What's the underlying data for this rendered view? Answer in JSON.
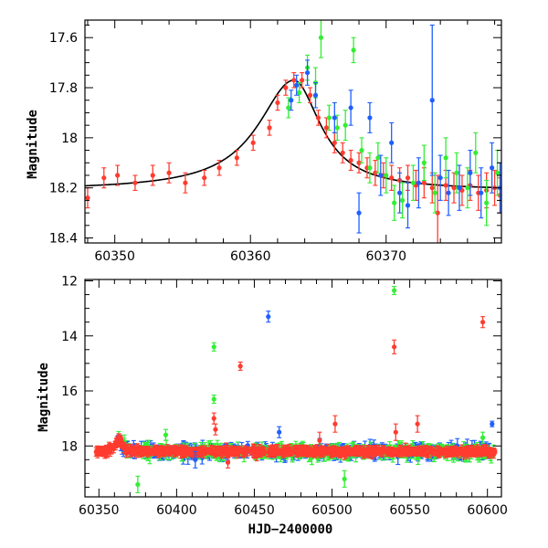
{
  "chart_data": [
    {
      "type": "scatter",
      "panel": "top",
      "title": "",
      "xlabel": "",
      "ylabel": "Magnitude",
      "xlim": [
        60347.8,
        60378.5
      ],
      "ylim": [
        18.42,
        17.53
      ],
      "y_inverted": true,
      "grid": false,
      "x_ticks": [
        60350,
        60360,
        60370
      ],
      "x_tick_labels": [
        "60350",
        "60360",
        "60370"
      ],
      "y_ticks": [
        17.6,
        17.8,
        18,
        18.2,
        18.4
      ],
      "y_tick_labels": [
        "17.6",
        "17.8",
        "18",
        "18.2",
        "18.4"
      ],
      "model_curve": {
        "color": "#000000",
        "baseline": 18.21,
        "peak_x": 60363.2,
        "peak_mag": 17.77,
        "rise_width": 3.2,
        "decay_width": 2.4
      },
      "series": [
        {
          "color": "#ff3b2f",
          "points": [
            [
              60348.0,
              18.24,
              0.04
            ],
            [
              60349.2,
              18.16,
              0.04
            ],
            [
              60350.2,
              18.15,
              0.04
            ],
            [
              60351.5,
              18.18,
              0.03
            ],
            [
              60352.8,
              18.15,
              0.04
            ],
            [
              60354.0,
              18.14,
              0.04
            ],
            [
              60355.2,
              18.18,
              0.04
            ],
            [
              60356.6,
              18.16,
              0.03
            ],
            [
              60357.7,
              18.12,
              0.03
            ],
            [
              60359.0,
              18.08,
              0.03
            ],
            [
              60360.2,
              18.02,
              0.03
            ],
            [
              60361.4,
              17.96,
              0.03
            ],
            [
              60362.0,
              17.86,
              0.03
            ],
            [
              60362.6,
              17.8,
              0.03
            ],
            [
              60363.2,
              17.77,
              0.03
            ],
            [
              60363.8,
              17.77,
              0.03
            ],
            [
              60364.4,
              17.83,
              0.03
            ],
            [
              60365.0,
              17.92,
              0.03
            ],
            [
              60365.6,
              17.96,
              0.04
            ],
            [
              60366.2,
              18.02,
              0.04
            ],
            [
              60366.8,
              18.06,
              0.04
            ],
            [
              60367.4,
              18.09,
              0.04
            ],
            [
              60368.0,
              18.1,
              0.04
            ],
            [
              60368.6,
              18.12,
              0.04
            ],
            [
              60369.2,
              18.14,
              0.05
            ],
            [
              60369.8,
              18.15,
              0.05
            ],
            [
              60370.4,
              18.16,
              0.05
            ],
            [
              60371.0,
              18.17,
              0.05
            ],
            [
              60371.6,
              18.16,
              0.05
            ],
            [
              60372.2,
              18.19,
              0.06
            ],
            [
              60372.8,
              18.18,
              0.06
            ],
            [
              60373.4,
              18.2,
              0.06
            ],
            [
              60373.8,
              18.3,
              0.15
            ],
            [
              60374.4,
              18.19,
              0.06
            ],
            [
              60375.0,
              18.2,
              0.06
            ],
            [
              60375.6,
              18.21,
              0.06
            ],
            [
              60376.2,
              18.19,
              0.06
            ],
            [
              60376.8,
              18.22,
              0.07
            ],
            [
              60377.4,
              18.21,
              0.07
            ],
            [
              60378.0,
              18.2,
              0.07
            ],
            [
              60378.4,
              18.23,
              0.07
            ]
          ]
        },
        {
          "color": "#33ee33",
          "points": [
            [
              60362.8,
              17.88,
              0.04
            ],
            [
              60363.6,
              17.82,
              0.04
            ],
            [
              60364.2,
              17.72,
              0.05
            ],
            [
              60364.8,
              17.78,
              0.06
            ],
            [
              60365.2,
              17.6,
              0.08
            ],
            [
              60365.8,
              17.92,
              0.05
            ],
            [
              60366.4,
              17.96,
              0.05
            ],
            [
              60367.0,
              17.95,
              0.06
            ],
            [
              60367.6,
              17.65,
              0.05
            ],
            [
              60368.2,
              18.05,
              0.05
            ],
            [
              60368.8,
              18.12,
              0.06
            ],
            [
              60369.4,
              18.08,
              0.06
            ],
            [
              60370.0,
              18.15,
              0.07
            ],
            [
              60370.6,
              18.26,
              0.07
            ],
            [
              60371.2,
              18.25,
              0.07
            ],
            [
              60372.0,
              18.18,
              0.07
            ],
            [
              60372.8,
              18.1,
              0.07
            ],
            [
              60373.6,
              18.22,
              0.08
            ],
            [
              60374.4,
              18.08,
              0.08
            ],
            [
              60375.2,
              18.14,
              0.08
            ],
            [
              60376.0,
              18.2,
              0.08
            ],
            [
              60376.6,
              18.06,
              0.08
            ],
            [
              60377.4,
              18.26,
              0.09
            ],
            [
              60378.2,
              18.14,
              0.09
            ]
          ]
        },
        {
          "color": "#1f5fff",
          "points": [
            [
              60363.0,
              17.85,
              0.04
            ],
            [
              60363.4,
              17.79,
              0.04
            ],
            [
              60364.2,
              17.74,
              0.05
            ],
            [
              60364.8,
              17.83,
              0.05
            ],
            [
              60366.2,
              17.92,
              0.06
            ],
            [
              60367.4,
              17.88,
              0.07
            ],
            [
              60368.0,
              18.3,
              0.08
            ],
            [
              60368.8,
              17.92,
              0.06
            ],
            [
              60369.6,
              18.15,
              0.08
            ],
            [
              60370.4,
              18.02,
              0.08
            ],
            [
              60371.0,
              18.22,
              0.08
            ],
            [
              60371.6,
              18.27,
              0.09
            ],
            [
              60372.4,
              18.18,
              0.1
            ],
            [
              60373.4,
              17.85,
              0.3
            ],
            [
              60374.0,
              18.16,
              0.09
            ],
            [
              60374.6,
              18.22,
              0.09
            ],
            [
              60375.4,
              18.2,
              0.09
            ],
            [
              60376.2,
              18.14,
              0.09
            ],
            [
              60377.0,
              18.22,
              0.1
            ],
            [
              60377.8,
              18.12,
              0.1
            ],
            [
              60378.4,
              18.2,
              0.1
            ]
          ]
        }
      ]
    },
    {
      "type": "scatter",
      "panel": "bottom",
      "title": "",
      "xlabel": "HJD−2400000",
      "ylabel": "Magnitude",
      "xlim": [
        60341,
        60609
      ],
      "ylim": [
        19.85,
        11.95
      ],
      "y_inverted": true,
      "grid": false,
      "x_ticks": [
        60350,
        60400,
        60450,
        60500,
        60550,
        60600
      ],
      "x_tick_labels": [
        "60350",
        "60400",
        "60450",
        "60500",
        "60550",
        "60600"
      ],
      "y_ticks": [
        12,
        14,
        16,
        18
      ],
      "y_tick_labels": [
        "12",
        "14",
        "16",
        "18"
      ],
      "series": [
        {
          "color": "#ff3b2f",
          "band_range": [
            60348,
            60605
          ],
          "outliers": [
            [
              60424,
              17.0,
              0.2
            ],
            [
              60425,
              17.4,
              0.2
            ],
            [
              60441,
              15.1,
              0.15
            ],
            [
              60492,
              17.8,
              0.3
            ],
            [
              60502,
              17.2,
              0.3
            ],
            [
              60540,
              14.4,
              0.25
            ],
            [
              60541,
              17.5,
              0.3
            ],
            [
              60555,
              17.2,
              0.3
            ],
            [
              60597,
              13.5,
              0.2
            ],
            [
              60433,
              18.6,
              0.2
            ]
          ]
        },
        {
          "color": "#33ee33",
          "band_range": [
            60362,
            60605
          ],
          "outliers": [
            [
              60424,
              14.4,
              0.15
            ],
            [
              60424,
              16.3,
              0.15
            ],
            [
              60375,
              19.4,
              0.3
            ],
            [
              60508,
              19.2,
              0.3
            ],
            [
              60540,
              12.35,
              0.15
            ],
            [
              60393,
              17.6,
              0.2
            ],
            [
              60597,
              17.7,
              0.2
            ]
          ]
        },
        {
          "color": "#1f5fff",
          "band_range": [
            60362,
            60605
          ],
          "outliers": [
            [
              60459,
              13.3,
              0.2
            ],
            [
              60466,
              17.5,
              0.2
            ],
            [
              60603,
              17.2,
              0.1
            ],
            [
              60412,
              18.5,
              0.3
            ]
          ]
        }
      ]
    }
  ]
}
